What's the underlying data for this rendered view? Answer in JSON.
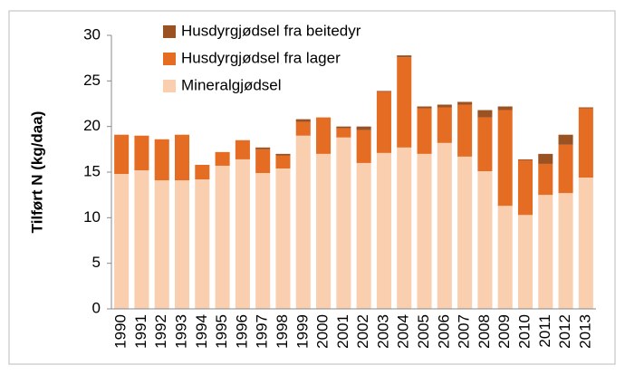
{
  "chart_data": {
    "type": "stacked-bar",
    "y_label": "Tilført N (kg/daa)",
    "categories": [
      "1990",
      "1991",
      "1992",
      "1993",
      "1994",
      "1995",
      "1996",
      "1997",
      "1998",
      "1999",
      "2000",
      "2001",
      "2002",
      "2003",
      "2004",
      "2005",
      "2006",
      "2007",
      "2008",
      "2009",
      "2010",
      "2011",
      "2012",
      "2013"
    ],
    "series": [
      {
        "name": "Mineralgjødsel",
        "color": "#f9cfb0",
        "values": [
          14.8,
          15.2,
          14.1,
          14.1,
          14.2,
          15.7,
          16.4,
          14.9,
          15.4,
          19.0,
          17.0,
          18.8,
          16.0,
          17.1,
          17.7,
          17.0,
          18.2,
          16.7,
          15.1,
          11.3,
          10.3,
          12.5,
          12.7,
          14.4
        ]
      },
      {
        "name": "Husdyrgjødsel fra lager",
        "color": "#e46c23",
        "values": [
          4.3,
          3.8,
          4.5,
          5.0,
          1.6,
          1.5,
          2.1,
          2.6,
          1.4,
          1.5,
          4.0,
          1.0,
          3.6,
          6.7,
          9.9,
          5.0,
          3.9,
          5.7,
          5.9,
          10.5,
          6.0,
          3.4,
          5.3,
          7.6
        ]
      },
      {
        "name": "Husdyrgjødsel fra beitedyr",
        "color": "#9a5222",
        "values": [
          0,
          0,
          0,
          0,
          0,
          0,
          0,
          0.2,
          0.2,
          0.3,
          0,
          0.2,
          0.4,
          0.1,
          0.2,
          0.2,
          0.3,
          0.3,
          0.8,
          0.4,
          0.1,
          1.1,
          1.1,
          0.1
        ]
      }
    ],
    "ylim": [
      0,
      30
    ],
    "yticks": [
      0,
      5,
      10,
      15,
      20,
      25,
      30
    ],
    "grid": false
  }
}
